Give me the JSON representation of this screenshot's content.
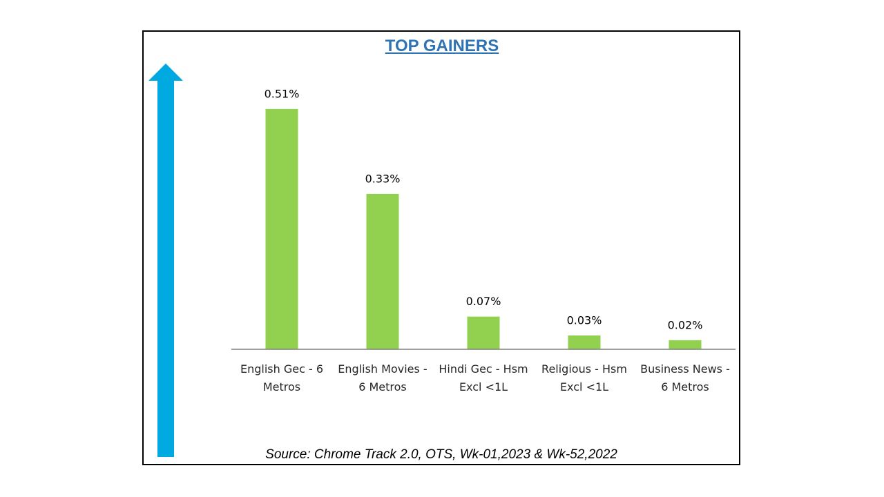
{
  "chart_data": {
    "type": "bar",
    "title": "TOP GAINERS",
    "categories": [
      [
        "English Gec - 6",
        "Metros"
      ],
      [
        "English Movies -",
        "6 Metros"
      ],
      [
        "Hindi Gec - Hsm",
        "Excl <1L"
      ],
      [
        "Religious - Hsm",
        "Excl <1L"
      ],
      [
        "Business News -",
        "6 Metros"
      ]
    ],
    "values": [
      0.51,
      0.33,
      0.07,
      0.03,
      0.02
    ],
    "data_labels": [
      "0.51%",
      "0.33%",
      "0.07%",
      "0.03%",
      "0.02%"
    ],
    "unit": "%",
    "ylim": [
      0,
      0.55
    ],
    "bar_color": "#92d050",
    "axis_color": "#7f7f7f",
    "grid": false,
    "legend": "none"
  },
  "source": "Source: Chrome Track 2.0, OTS, Wk-01,2023 & Wk-52,2022",
  "colors": {
    "title": "#2e74b5",
    "arrow": "#00a9e0",
    "frame": "#000000"
  },
  "decor": {
    "arrow_icon": "up-arrow-icon"
  }
}
